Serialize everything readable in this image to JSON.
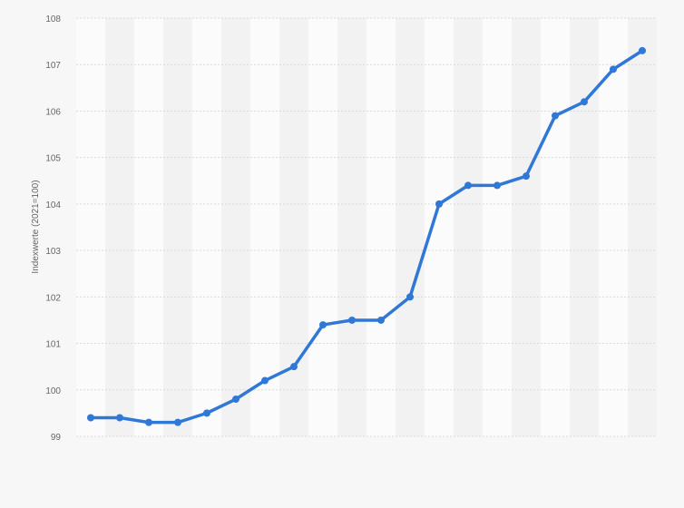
{
  "chart_data": {
    "type": "line",
    "title": "",
    "xlabel": "",
    "ylabel": "Indexwerte (2021=100)",
    "ylim": [
      99,
      108
    ],
    "yticks": [
      99,
      100,
      101,
      102,
      103,
      104,
      105,
      106,
      107,
      108
    ],
    "grid": true,
    "legend": "none",
    "series": [
      {
        "color": "#2f78d8",
        "values": [
          99.4,
          99.4,
          99.3,
          99.3,
          99.5,
          99.8,
          100.2,
          100.5,
          101.4,
          101.5,
          101.5,
          102.0,
          104.0,
          104.4,
          104.4,
          104.6,
          105.9,
          106.2,
          106.9,
          107.3
        ]
      }
    ]
  },
  "colors": {
    "background": "#f7f7f7",
    "band_light": "#fbfbfb",
    "band_dark": "#f2f2f2",
    "gridline": "#d9d9d9",
    "line": "#2f78d8"
  }
}
